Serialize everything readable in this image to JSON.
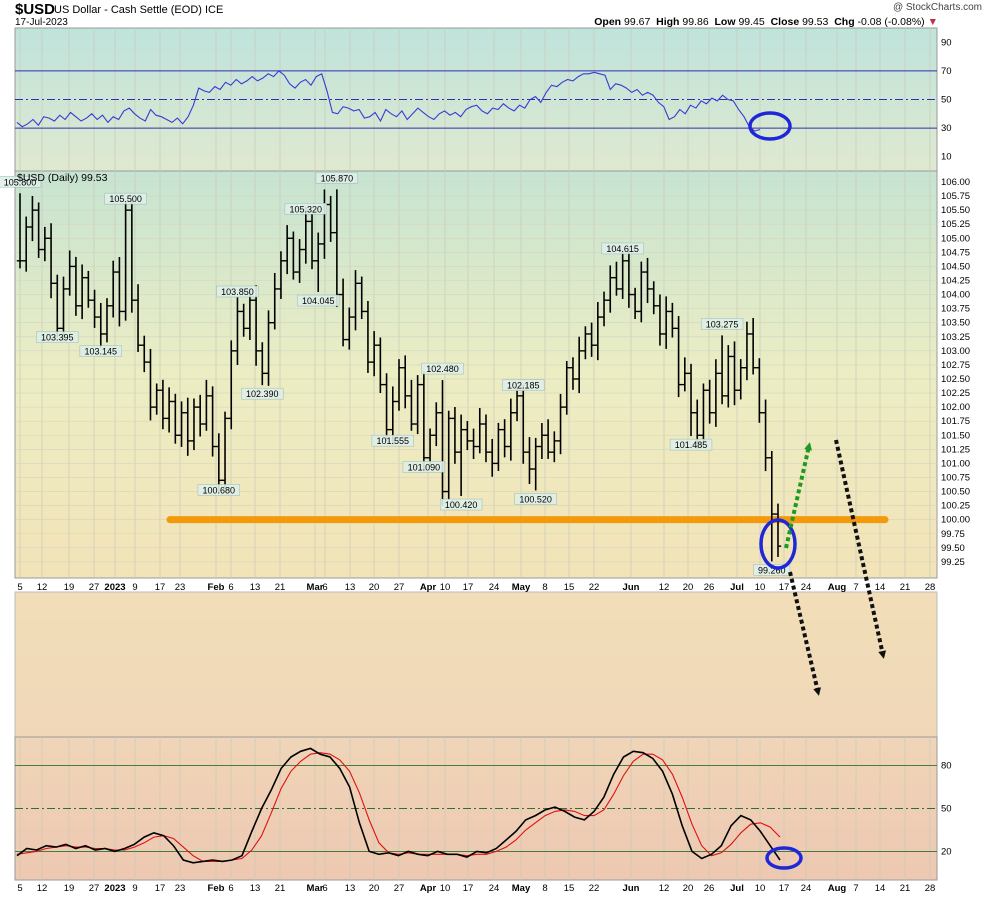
{
  "header": {
    "symbol": "$USD",
    "name": "US Dollar - Cash Settle (EOD)",
    "exchange": "ICE",
    "date": "17-Jul-2023",
    "brand": "@ StockCharts.com",
    "open_label": "Open",
    "open": "99.67",
    "high_label": "High",
    "high": "99.86",
    "low_label": "Low",
    "low": "99.45",
    "close_label": "Close",
    "close": "99.53",
    "chg_label": "Chg",
    "chg": "-0.08 (-0.08%)"
  },
  "chart_data": [
    {
      "type": "line",
      "panel": "rsi",
      "ylim": [
        0,
        100
      ],
      "yticks": [
        10,
        30,
        50,
        70,
        90
      ],
      "reference_lines": [
        30,
        50,
        70
      ],
      "colors": {
        "line": "#3a3ad6",
        "bands": "#2f2fb0"
      },
      "series": [
        {
          "values": [
            34,
            31,
            33,
            36,
            32,
            38,
            37,
            35,
            39,
            36,
            41,
            38,
            35,
            37,
            40,
            36,
            39,
            34,
            38,
            36,
            42,
            44,
            40,
            37,
            35,
            43,
            39,
            38,
            36,
            34,
            37,
            33,
            38,
            46,
            58,
            56,
            55,
            59,
            57,
            62,
            60,
            64,
            61,
            63,
            66,
            63,
            65,
            68,
            66,
            70,
            67,
            61,
            58,
            62,
            64,
            60,
            66,
            68,
            56,
            41,
            40,
            45,
            44,
            42,
            43,
            37,
            38,
            41,
            35,
            43,
            40,
            38,
            42,
            36,
            40,
            44,
            41,
            38,
            36,
            40,
            42,
            39,
            41,
            38,
            43,
            45,
            46,
            42,
            40,
            44,
            43,
            47,
            44,
            42,
            46,
            44,
            50,
            52,
            48,
            55,
            60,
            59,
            62,
            64,
            63,
            66,
            68,
            68,
            69,
            68,
            67,
            57,
            61,
            60,
            58,
            55,
            57,
            53,
            55,
            53,
            48,
            45,
            36,
            38,
            43,
            40,
            46,
            44,
            49,
            47,
            51,
            49,
            53,
            50,
            49,
            43,
            38,
            31,
            28,
            29
          ]
        }
      ]
    },
    {
      "type": "bar",
      "panel": "price",
      "title": "$USD (Daily) 99.53",
      "ylim": [
        99.0,
        106.25
      ],
      "yticks": [
        99.25,
        99.5,
        99.75,
        100.0,
        100.25,
        100.5,
        100.75,
        101.0,
        101.25,
        101.5,
        101.75,
        102.0,
        102.25,
        102.5,
        102.75,
        103.0,
        103.25,
        103.5,
        103.75,
        104.0,
        104.25,
        104.5,
        104.75,
        105.0,
        105.25,
        105.5,
        105.75,
        106.0
      ],
      "xticks": [
        "5",
        "12",
        "19",
        "27",
        "2023",
        "9",
        "17",
        "23",
        "Feb",
        "6",
        "13",
        "21",
        "Mar",
        "6",
        "13",
        "20",
        "27",
        "Apr",
        "10",
        "17",
        "24",
        "May",
        "8",
        "15",
        "22",
        "Jun",
        "12",
        "20",
        "26",
        "Jul",
        "10",
        "17",
        "24",
        "Aug",
        "7",
        "14",
        "21",
        "28"
      ],
      "support_level": 100.0,
      "colors": {
        "bars": "#000000",
        "support": "#f39a0c",
        "circle": "#1f28d8",
        "up_arrow": "#1e9a1e",
        "down_arrow": "#111111"
      },
      "closes": [
        104.6,
        105.2,
        105.5,
        104.8,
        105.0,
        104.2,
        103.4,
        104.1,
        104.5,
        103.8,
        104.3,
        103.9,
        103.6,
        103.3,
        103.8,
        104.4,
        103.7,
        105.5,
        103.9,
        103.1,
        102.8,
        102.0,
        102.3,
        101.8,
        102.1,
        101.5,
        101.9,
        101.4,
        102.0,
        101.7,
        102.2,
        101.3,
        100.7,
        101.8,
        103.0,
        103.7,
        103.4,
        103.9,
        103.0,
        102.6,
        103.5,
        104.1,
        104.6,
        105.0,
        104.4,
        104.8,
        105.3,
        104.6,
        104.9,
        105.6,
        105.1,
        104.0,
        103.2,
        103.6,
        104.2,
        103.7,
        102.8,
        103.1,
        102.4,
        101.6,
        102.1,
        102.7,
        102.2,
        101.7,
        102.4,
        101.1,
        101.5,
        101.9,
        100.5,
        101.8,
        101.2,
        101.6,
        101.4,
        101.3,
        101.7,
        101.2,
        101.0,
        101.6,
        101.3,
        101.9,
        102.2,
        101.2,
        100.9,
        101.3,
        101.5,
        101.2,
        101.4,
        102.0,
        102.7,
        102.5,
        103.0,
        103.3,
        103.1,
        103.6,
        103.9,
        104.3,
        104.1,
        104.6,
        104.0,
        103.7,
        104.4,
        104.1,
        103.8,
        103.3,
        103.7,
        103.4,
        102.4,
        102.6,
        101.9,
        101.5,
        102.3,
        101.9,
        102.6,
        102.2,
        102.9,
        102.3,
        102.7,
        103.3,
        102.7,
        101.9,
        101.1,
        100.1,
        99.53
      ],
      "annotations": [
        {
          "label": "105.800",
          "x": 0,
          "value": 105.8
        },
        {
          "label": "105.500",
          "x": 17,
          "value": 105.5
        },
        {
          "label": "103.395",
          "x": 6,
          "value": 103.395
        },
        {
          "label": "103.145",
          "x": 13,
          "value": 103.145
        },
        {
          "label": "100.680",
          "x": 32,
          "value": 100.68
        },
        {
          "label": "103.850",
          "x": 35,
          "value": 103.85
        },
        {
          "label": "102.390",
          "x": 39,
          "value": 102.39
        },
        {
          "label": "105.320",
          "x": 46,
          "value": 105.32
        },
        {
          "label": "104.045",
          "x": 48,
          "value": 104.045
        },
        {
          "label": "105.870",
          "x": 51,
          "value": 105.87
        },
        {
          "label": "101.555",
          "x": 60,
          "value": 101.555
        },
        {
          "label": "102.480",
          "x": 68,
          "value": 102.48
        },
        {
          "label": "101.090",
          "x": 65,
          "value": 101.09
        },
        {
          "label": "100.420",
          "x": 71,
          "value": 100.42
        },
        {
          "label": "102.185",
          "x": 81,
          "value": 102.185
        },
        {
          "label": "100.520",
          "x": 83,
          "value": 100.52
        },
        {
          "label": "104.615",
          "x": 97,
          "value": 104.615
        },
        {
          "label": "101.485",
          "x": 108,
          "value": 101.485
        },
        {
          "label": "103.275",
          "x": 113,
          "value": 103.275
        },
        {
          "label": "99.260",
          "x": 121,
          "value": 99.26
        }
      ]
    },
    {
      "type": "line",
      "panel": "stochastic",
      "ylim": [
        0,
        100
      ],
      "yticks": [
        20,
        50,
        80
      ],
      "reference_lines": [
        20,
        50,
        80
      ],
      "colors": {
        "k": "#000000",
        "d": "#e01010"
      },
      "series": [
        {
          "values": [
            17,
            22,
            21,
            24,
            23,
            25,
            22,
            24,
            21,
            22,
            20,
            22,
            25,
            30,
            33,
            31,
            24,
            14,
            12,
            13,
            14,
            13,
            14,
            17,
            34,
            50,
            63,
            78,
            86,
            90,
            92,
            88,
            86,
            78,
            65,
            40,
            20,
            18,
            19,
            17,
            20,
            18,
            17,
            20,
            18,
            18,
            16,
            20,
            19,
            22,
            28,
            34,
            42,
            45,
            49,
            51,
            48,
            44,
            42,
            48,
            58,
            74,
            86,
            90,
            89,
            85,
            76,
            60,
            38,
            20,
            15,
            18,
            24,
            38,
            45,
            42,
            34,
            24,
            14
          ]
        },
        {
          "values": [
            18,
            19,
            20,
            22,
            23,
            24,
            23,
            23,
            22,
            22,
            21,
            21,
            23,
            26,
            30,
            31,
            29,
            23,
            17,
            13,
            13,
            13,
            14,
            15,
            21,
            31,
            47,
            64,
            76,
            83,
            88,
            89,
            88,
            84,
            76,
            61,
            42,
            26,
            19,
            18,
            19,
            18,
            18,
            18,
            18,
            18,
            17,
            18,
            18,
            20,
            23,
            28,
            35,
            40,
            45,
            48,
            49,
            48,
            45,
            45,
            49,
            60,
            73,
            83,
            88,
            88,
            84,
            74,
            58,
            39,
            24,
            17,
            19,
            25,
            33,
            39,
            40,
            37,
            30
          ]
        }
      ]
    }
  ]
}
